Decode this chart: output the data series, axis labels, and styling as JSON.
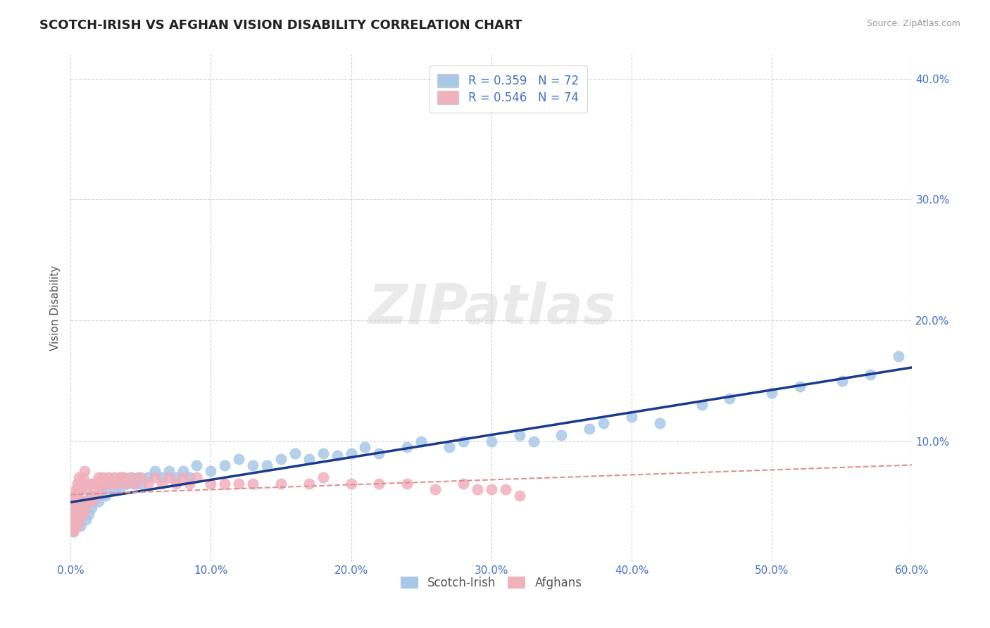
{
  "title": "SCOTCH-IRISH VS AFGHAN VISION DISABILITY CORRELATION CHART",
  "source": "Source: ZipAtlas.com",
  "ylabel": "Vision Disability",
  "xmin": 0.0,
  "xmax": 0.6,
  "ymin": 0.0,
  "ymax": 0.42,
  "xticks": [
    0.0,
    0.1,
    0.2,
    0.3,
    0.4,
    0.5,
    0.6
  ],
  "xtick_labels": [
    "0.0%",
    "10.0%",
    "20.0%",
    "30.0%",
    "40.0%",
    "50.0%",
    "60.0%"
  ],
  "yticks": [
    0.1,
    0.2,
    0.3,
    0.4
  ],
  "ytick_labels": [
    "10.0%",
    "20.0%",
    "30.0%",
    "40.0%"
  ],
  "scotch_irish_color": "#a8c8e8",
  "afghan_color": "#f0b0bc",
  "scotch_irish_line_color": "#1a3a8c",
  "afghan_line_color": "#e09090",
  "title_color": "#222222",
  "tick_color": "#4472c4",
  "grid_color": "#c8c8c8",
  "background_color": "#ffffff",
  "watermark": "ZIPatlas",
  "R_scotch": 0.359,
  "N_scotch": 72,
  "R_afghan": 0.546,
  "N_afghan": 74,
  "scotch_irish_x": [
    0.001,
    0.002,
    0.003,
    0.003,
    0.004,
    0.005,
    0.005,
    0.006,
    0.007,
    0.008,
    0.009,
    0.01,
    0.011,
    0.012,
    0.013,
    0.014,
    0.015,
    0.016,
    0.018,
    0.02,
    0.022,
    0.025,
    0.028,
    0.03,
    0.033,
    0.035,
    0.038,
    0.04,
    0.043,
    0.045,
    0.048,
    0.05,
    0.055,
    0.06,
    0.065,
    0.07,
    0.075,
    0.08,
    0.085,
    0.09,
    0.1,
    0.11,
    0.12,
    0.13,
    0.14,
    0.15,
    0.16,
    0.17,
    0.18,
    0.19,
    0.2,
    0.21,
    0.22,
    0.24,
    0.25,
    0.27,
    0.28,
    0.3,
    0.32,
    0.33,
    0.35,
    0.37,
    0.38,
    0.4,
    0.42,
    0.45,
    0.47,
    0.5,
    0.52,
    0.55,
    0.57,
    0.59
  ],
  "scotch_irish_y": [
    0.03,
    0.025,
    0.03,
    0.04,
    0.03,
    0.035,
    0.045,
    0.04,
    0.03,
    0.05,
    0.04,
    0.045,
    0.035,
    0.05,
    0.04,
    0.055,
    0.045,
    0.05,
    0.055,
    0.05,
    0.06,
    0.055,
    0.065,
    0.06,
    0.065,
    0.06,
    0.07,
    0.065,
    0.07,
    0.065,
    0.07,
    0.065,
    0.07,
    0.075,
    0.07,
    0.075,
    0.07,
    0.075,
    0.07,
    0.08,
    0.075,
    0.08,
    0.085,
    0.08,
    0.08,
    0.085,
    0.09,
    0.085,
    0.09,
    0.088,
    0.09,
    0.095,
    0.09,
    0.095,
    0.1,
    0.095,
    0.1,
    0.1,
    0.105,
    0.1,
    0.105,
    0.11,
    0.115,
    0.12,
    0.115,
    0.13,
    0.135,
    0.14,
    0.145,
    0.15,
    0.155,
    0.17
  ],
  "afghan_x": [
    0.001,
    0.001,
    0.001,
    0.002,
    0.002,
    0.002,
    0.003,
    0.003,
    0.003,
    0.004,
    0.004,
    0.004,
    0.005,
    0.005,
    0.005,
    0.006,
    0.006,
    0.006,
    0.007,
    0.007,
    0.008,
    0.008,
    0.009,
    0.009,
    0.01,
    0.01,
    0.011,
    0.012,
    0.013,
    0.014,
    0.015,
    0.016,
    0.017,
    0.018,
    0.019,
    0.02,
    0.021,
    0.022,
    0.023,
    0.025,
    0.027,
    0.029,
    0.031,
    0.033,
    0.035,
    0.037,
    0.04,
    0.043,
    0.046,
    0.05,
    0.055,
    0.06,
    0.065,
    0.07,
    0.075,
    0.08,
    0.085,
    0.09,
    0.1,
    0.11,
    0.12,
    0.13,
    0.15,
    0.17,
    0.18,
    0.2,
    0.22,
    0.24,
    0.26,
    0.28,
    0.29,
    0.3,
    0.31,
    0.32
  ],
  "afghan_y": [
    0.03,
    0.035,
    0.04,
    0.025,
    0.04,
    0.05,
    0.03,
    0.045,
    0.055,
    0.03,
    0.05,
    0.06,
    0.03,
    0.055,
    0.065,
    0.035,
    0.06,
    0.07,
    0.04,
    0.06,
    0.04,
    0.065,
    0.04,
    0.07,
    0.045,
    0.075,
    0.05,
    0.06,
    0.05,
    0.065,
    0.05,
    0.065,
    0.055,
    0.065,
    0.055,
    0.07,
    0.06,
    0.065,
    0.07,
    0.065,
    0.07,
    0.065,
    0.07,
    0.065,
    0.07,
    0.07,
    0.065,
    0.07,
    0.065,
    0.07,
    0.065,
    0.07,
    0.065,
    0.07,
    0.065,
    0.07,
    0.065,
    0.07,
    0.065,
    0.065,
    0.065,
    0.065,
    0.065,
    0.065,
    0.07,
    0.065,
    0.065,
    0.065,
    0.06,
    0.065,
    0.06,
    0.06,
    0.06,
    0.055
  ]
}
